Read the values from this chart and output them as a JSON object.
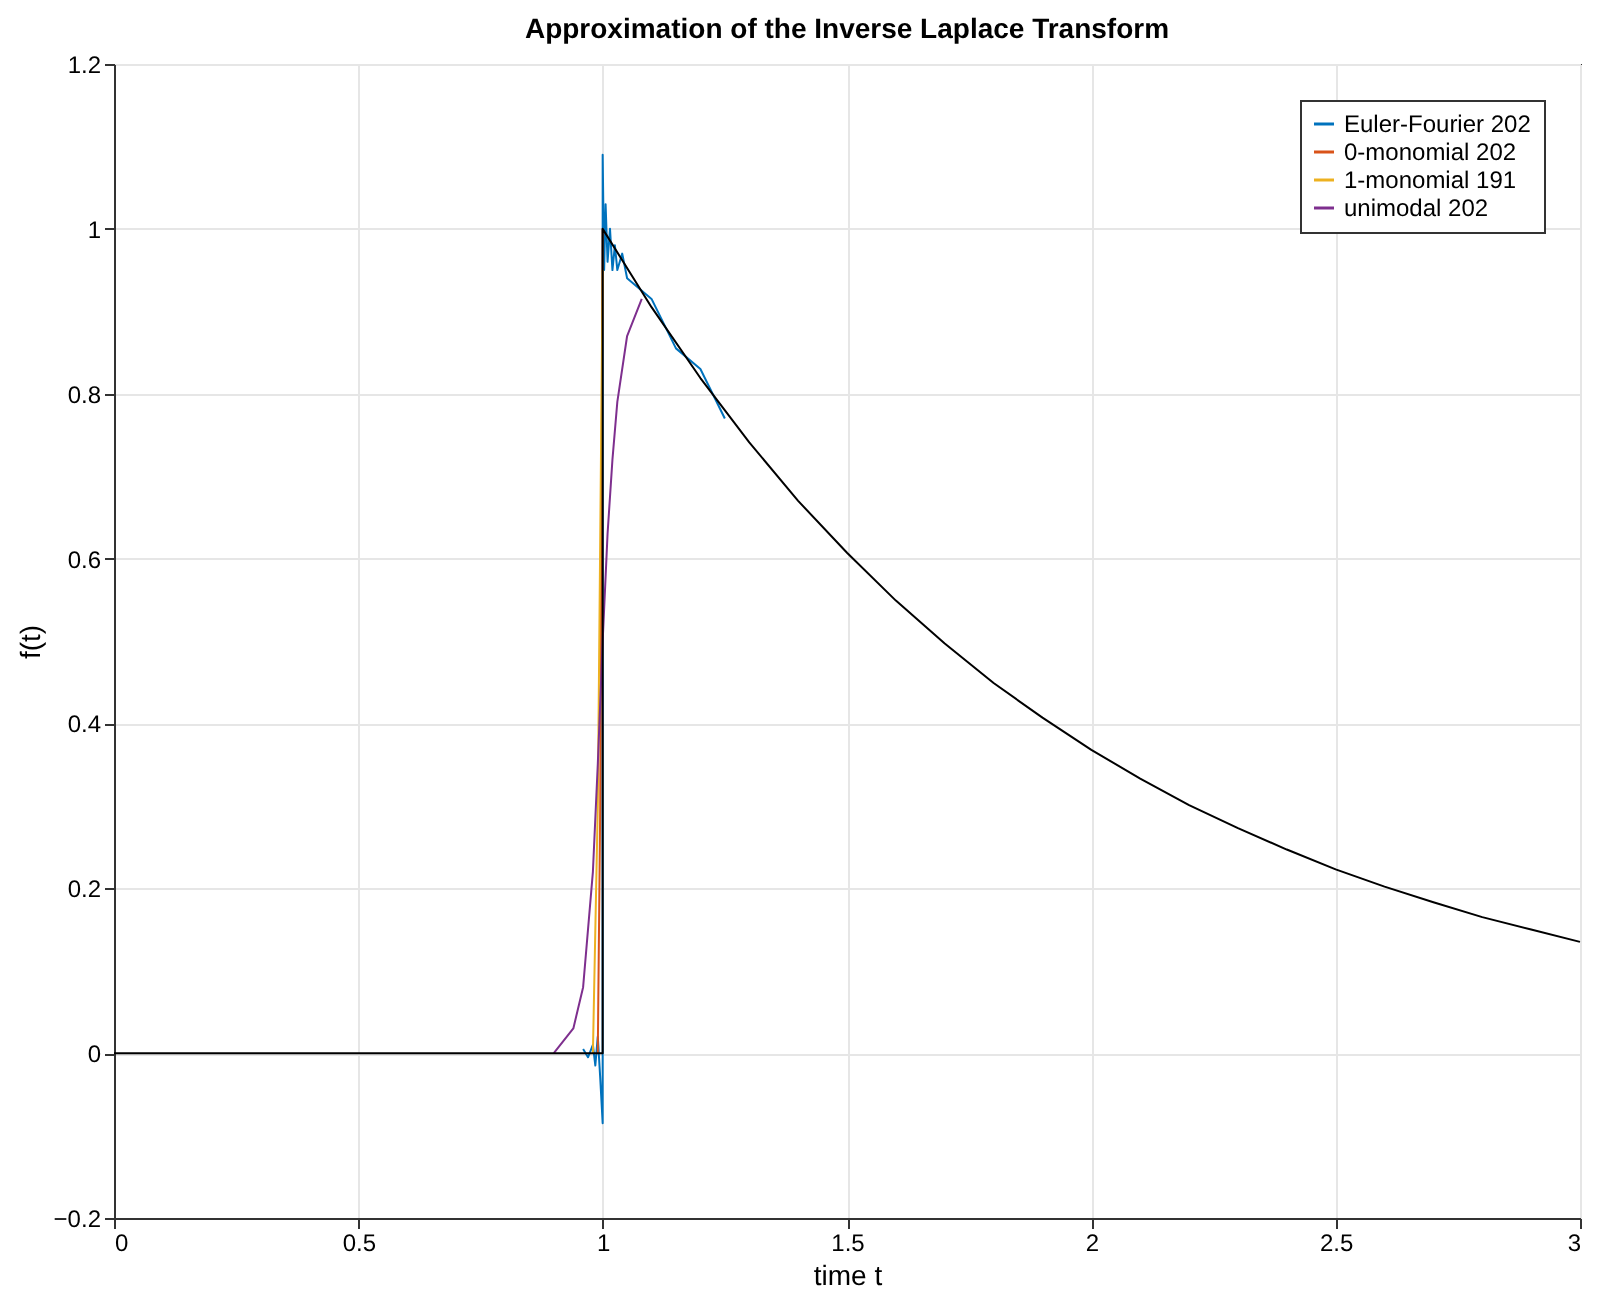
{
  "chart_data": {
    "type": "line",
    "title": "Approximation of the Inverse Laplace Transform",
    "xlabel": "time t",
    "ylabel": "f(t)",
    "xlim": [
      0,
      3
    ],
    "ylim": [
      -0.2,
      1.2
    ],
    "xticks": [
      0,
      0.5,
      1,
      1.5,
      2,
      2.5,
      3
    ],
    "yticks": [
      -0.2,
      0,
      0.2,
      0.4,
      0.6,
      0.8,
      1,
      1.2
    ],
    "grid": true,
    "legend": "top right",
    "line_style": "solid",
    "marker": "none",
    "series": [
      {
        "name": "Euler-Fourier 202",
        "color": "#0072bd",
        "x": [
          0.96,
          0.97,
          0.98,
          0.985,
          0.99,
          0.995,
          1.0,
          1.0,
          1.003,
          1.006,
          1.01,
          1.015,
          1.02,
          1.025,
          1.03,
          1.04,
          1.05,
          1.1,
          1.15,
          1.2,
          1.25
        ],
        "values": [
          0.005,
          -0.005,
          0.01,
          -0.015,
          0.02,
          -0.03,
          -0.085,
          1.09,
          0.95,
          1.03,
          0.96,
          1.0,
          0.95,
          0.98,
          0.95,
          0.97,
          0.94,
          0.915,
          0.855,
          0.83,
          0.77
        ]
      },
      {
        "name": "0-monomial 202",
        "color": "#d95319",
        "x": [
          0.99,
          0.995,
          1.0
        ],
        "values": [
          0,
          0.3,
          1.0
        ]
      },
      {
        "name": "1-monomial 191",
        "color": "#edb120",
        "x": [
          0.98,
          0.99,
          1.0
        ],
        "values": [
          0,
          0.3,
          0.95
        ]
      },
      {
        "name": "unimodal 202",
        "color": "#7e2f8e",
        "x": [
          0.9,
          0.94,
          0.96,
          0.98,
          0.99,
          1.0,
          1.01,
          1.02,
          1.03,
          1.05,
          1.08
        ],
        "values": [
          0,
          0.03,
          0.08,
          0.22,
          0.35,
          0.5,
          0.63,
          0.72,
          0.79,
          0.87,
          0.915
        ]
      },
      {
        "color": "#000000",
        "x": [
          0,
          1.0,
          1.0,
          1.1,
          1.2,
          1.3,
          1.4,
          1.5,
          1.6,
          1.7,
          1.8,
          1.9,
          2.0,
          2.1,
          2.2,
          2.3,
          2.4,
          2.5,
          2.6,
          2.7,
          2.8,
          2.9,
          3.0
        ],
        "values": [
          0,
          0,
          1.0,
          0.905,
          0.819,
          0.741,
          0.67,
          0.607,
          0.549,
          0.497,
          0.449,
          0.407,
          0.368,
          0.333,
          0.301,
          0.273,
          0.247,
          0.223,
          0.202,
          0.183,
          0.165,
          0.15,
          0.135
        ]
      }
    ]
  }
}
